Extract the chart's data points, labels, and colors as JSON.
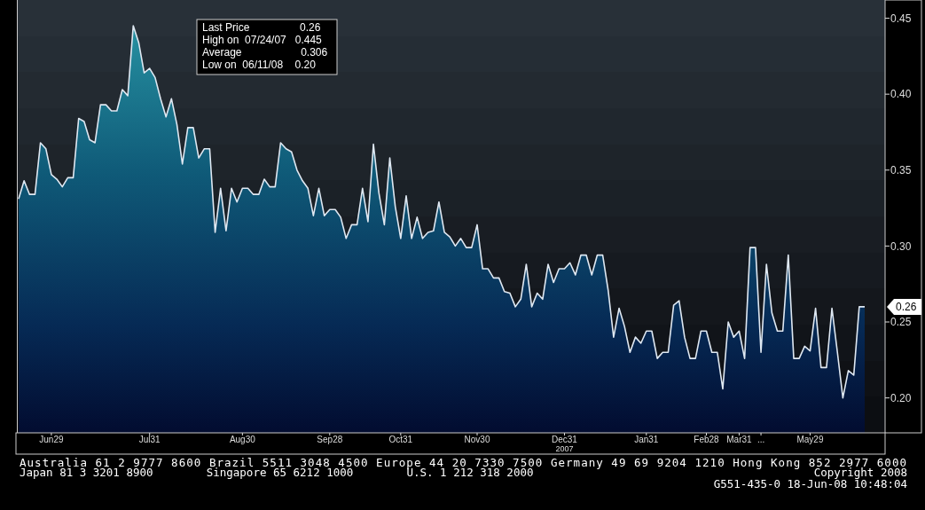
{
  "chart_data": {
    "type": "area",
    "categories": [
      null,
      null,
      null,
      null,
      null,
      null,
      "Jun29",
      null,
      null,
      null,
      null,
      null,
      null,
      null,
      null,
      null,
      null,
      null,
      null,
      null,
      null,
      null,
      null,
      null,
      "Jul31",
      null,
      null,
      null,
      null,
      null,
      null,
      null,
      null,
      null,
      null,
      null,
      null,
      null,
      null,
      null,
      null,
      "Aug30",
      null,
      null,
      null,
      null,
      null,
      null,
      null,
      null,
      null,
      null,
      null,
      null,
      null,
      null,
      null,
      "Sep28",
      null,
      null,
      null,
      null,
      null,
      null,
      null,
      null,
      null,
      null,
      null,
      null,
      "Oct31",
      null,
      null,
      null,
      null,
      null,
      null,
      null,
      null,
      null,
      null,
      null,
      null,
      null,
      "Nov30",
      null,
      null,
      null,
      null,
      null,
      null,
      null,
      null,
      null,
      null,
      null,
      null,
      null,
      null,
      null,
      "Dec31\n2007",
      null,
      null,
      null,
      null,
      null,
      null,
      null,
      null,
      null,
      null,
      null,
      null,
      null,
      null,
      "Jan31",
      null,
      null,
      null,
      null,
      null,
      null,
      null,
      null,
      null,
      null,
      "Feb28",
      null,
      null,
      null,
      null,
      null,
      "Mar31",
      null,
      null,
      null,
      "...",
      null,
      null,
      null,
      null,
      null,
      null,
      null,
      null,
      "May29",
      null,
      null,
      null,
      null,
      null,
      null,
      null,
      null,
      null,
      null
    ],
    "series": [
      {
        "color": "#dfe8f2",
        "values": [
          0.331,
          0.343,
          0.334,
          0.334,
          0.368,
          0.364,
          0.347,
          0.344,
          0.339,
          0.345,
          0.345,
          0.384,
          0.382,
          0.37,
          0.368,
          0.393,
          0.393,
          0.389,
          0.389,
          0.403,
          0.399,
          0.445,
          0.434,
          0.414,
          0.417,
          0.411,
          0.397,
          0.385,
          0.397,
          0.38,
          0.354,
          0.378,
          0.378,
          0.358,
          0.364,
          0.364,
          0.309,
          0.338,
          0.31,
          0.338,
          0.329,
          0.338,
          0.338,
          0.334,
          0.334,
          0.344,
          0.339,
          0.339,
          0.368,
          0.364,
          0.362,
          0.35,
          0.343,
          0.338,
          0.32,
          0.338,
          0.32,
          0.324,
          0.324,
          0.319,
          0.305,
          0.314,
          0.314,
          0.338,
          0.316,
          0.367,
          0.335,
          0.314,
          0.358,
          0.326,
          0.305,
          0.333,
          0.305,
          0.319,
          0.305,
          0.309,
          0.31,
          0.329,
          0.309,
          0.306,
          0.3,
          0.305,
          0.299,
          0.299,
          0.314,
          0.285,
          0.285,
          0.279,
          0.279,
          0.27,
          0.269,
          0.26,
          0.265,
          0.288,
          0.26,
          0.269,
          0.265,
          0.288,
          0.276,
          0.285,
          0.285,
          0.289,
          0.281,
          0.294,
          0.294,
          0.281,
          0.294,
          0.294,
          0.271,
          0.24,
          0.259,
          0.247,
          0.23,
          0.24,
          0.236,
          0.244,
          0.244,
          0.226,
          0.23,
          0.23,
          0.261,
          0.264,
          0.24,
          0.226,
          0.226,
          0.244,
          0.244,
          0.23,
          0.23,
          0.206,
          0.25,
          0.24,
          0.244,
          0.226,
          0.299,
          0.299,
          0.23,
          0.288,
          0.256,
          0.244,
          0.244,
          0.294,
          0.226,
          0.226,
          0.234,
          0.231,
          0.259,
          0.22,
          0.22,
          0.259,
          0.23,
          0.2,
          0.218,
          0.215,
          0.26,
          0.26
        ]
      }
    ],
    "ylim": [
      0.177,
      0.462
    ],
    "yticks": [
      {
        "value": 0.2,
        "label": "0.20"
      },
      {
        "value": 0.25,
        "label": "0.25"
      },
      {
        "value": 0.3,
        "label": "0.30"
      },
      {
        "value": 0.35,
        "label": "0.35"
      },
      {
        "value": 0.4,
        "label": "0.40"
      },
      {
        "value": 0.45,
        "label": "0.45"
      }
    ],
    "grid": false,
    "annotations": [
      "Last Price                 0.26",
      "High on  07/24/07   0.445",
      "Average                    0.306",
      "Low on  06/11/08    0.20",
      "0.26",
      "Australia 61 2 9777 8600 Brazil 5511 3048 4500 Europe 44 20 7330 7500 Germany 49 69 9204 1210 Hong Kong 852 2977 6000",
      "Japan 81 3 3201 8900        Singapore 65 6212 1000        U.S. 1 212 318 2000",
      "Copyright 2008",
      "G551-435-0 18-Jun-08 10:48:04"
    ]
  }
}
